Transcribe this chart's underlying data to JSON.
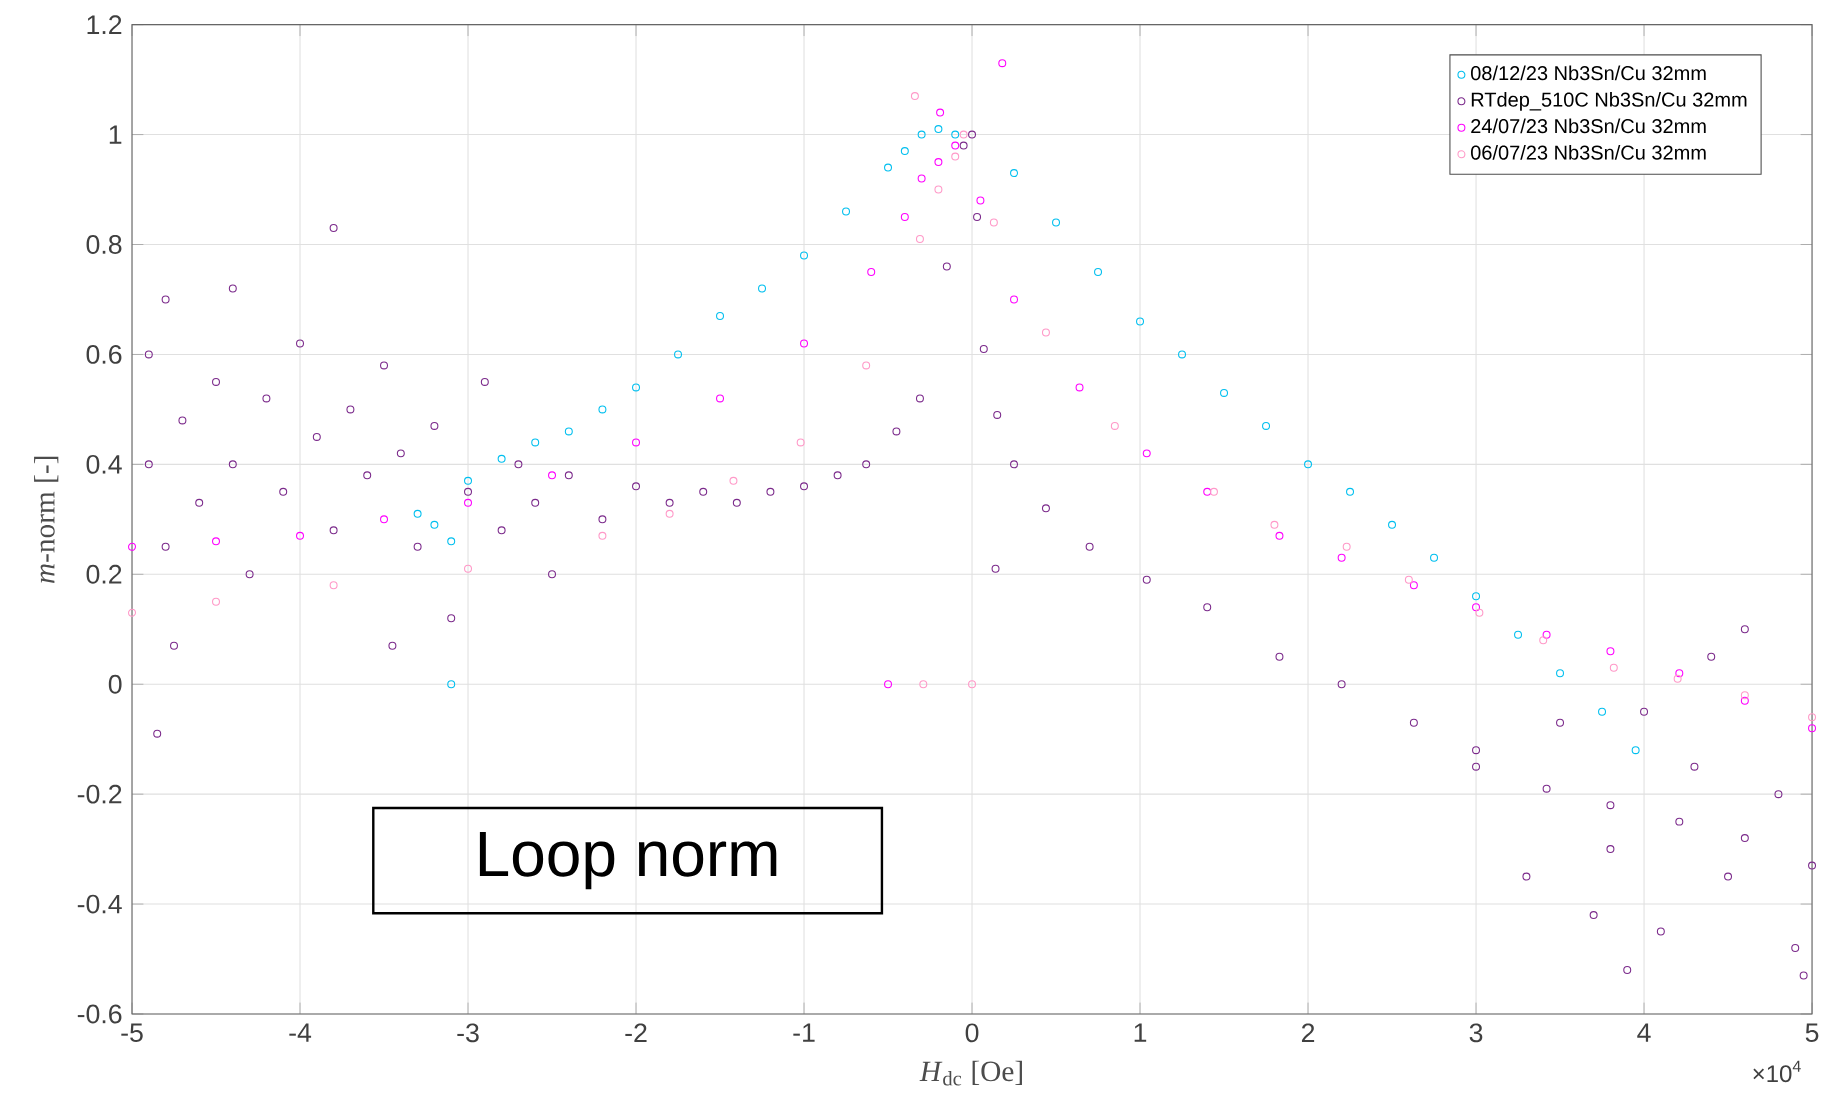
{
  "chart_data": {
    "type": "scatter",
    "xlabel": "*H*$_{dc}$ [Oe]",
    "ylabel": "*m*-norm [-]",
    "xlim": [
      -5,
      5
    ],
    "xticks": [
      -5,
      -4,
      -3,
      -2,
      -1,
      0,
      1,
      2,
      3,
      4,
      5
    ],
    "ylim": [
      -0.6,
      1.2
    ],
    "yticks": [
      -0.6,
      -0.4,
      -0.2,
      0,
      0.2,
      0.4,
      0.6,
      0.8,
      1,
      1.2
    ],
    "grid": true,
    "legend": "top right",
    "marker": "circle",
    "annotations": [
      "Loop norm",
      "×10$^{4}$"
    ],
    "series": [
      {
        "name": "08/12/23 Nb3Sn/Cu 32mm",
        "color": "#00bfef",
        "x": [
          -3.3,
          -3.2,
          -3.1,
          -3.0,
          -2.8,
          -2.6,
          -2.4,
          -2.2,
          -2.0,
          -1.75,
          -1.5,
          -1.25,
          -1.0,
          -0.75,
          -0.5,
          -0.4,
          -0.3,
          -0.2,
          -0.1,
          0,
          0.25,
          0.5,
          0.75,
          1.0,
          1.25,
          1.5,
          1.75,
          2.0,
          2.25,
          2.5,
          2.75,
          3.0,
          3.25,
          3.5,
          3.75,
          3.95,
          -3.1
        ],
        "values": [
          0.31,
          0.29,
          0.26,
          0.37,
          0.41,
          0.44,
          0.46,
          0.5,
          0.54,
          0.6,
          0.67,
          0.72,
          0.78,
          0.86,
          0.94,
          0.97,
          1.0,
          1.01,
          1.0,
          null,
          0.93,
          0.84,
          0.75,
          0.66,
          0.6,
          0.53,
          0.47,
          0.4,
          0.35,
          0.29,
          0.23,
          0.16,
          0.09,
          0.02,
          -0.05,
          -0.12,
          0
        ]
      },
      {
        "name": "RTdep_510C Nb3Sn/Cu 32mm",
        "color": "#7b2a8b",
        "x": [
          -4.9,
          -4.9,
          -4.8,
          -4.8,
          -4.7,
          -4.6,
          -4.5,
          -4.4,
          -4.4,
          -4.3,
          -4.2,
          -4.1,
          -4.0,
          -3.9,
          -3.8,
          -3.8,
          -3.7,
          -3.6,
          -3.5,
          -3.4,
          -3.3,
          -3.2,
          -3.1,
          -3.0,
          -2.9,
          -2.8,
          -2.7,
          -2.6,
          -2.5,
          -2.4,
          -2.2,
          -2.0,
          -1.8,
          -1.6,
          -1.4,
          -1.2,
          -1.0,
          -0.8,
          -0.63,
          -0.45,
          -0.31,
          -0.15,
          -0.05,
          0,
          0.03,
          0.07,
          -4.85,
          -4.75,
          -3.45,
          0.15,
          0.25,
          0.44,
          0.7,
          1.04,
          1.4,
          1.83,
          2.2,
          2.63,
          3.0,
          3.42,
          3.8,
          4.21,
          4.6,
          5.0,
          3.0,
          3.3,
          3.5,
          3.7,
          3.8,
          3.9,
          4.0,
          4.1,
          4.3,
          4.4,
          4.5,
          4.6,
          4.8,
          4.9,
          4.95,
          0.14
        ],
        "values": [
          0.6,
          0.4,
          0.25,
          0.7,
          0.48,
          0.33,
          0.55,
          0.72,
          0.4,
          0.2,
          0.52,
          0.35,
          0.62,
          0.45,
          0.28,
          0.83,
          0.5,
          0.38,
          0.58,
          0.42,
          0.25,
          0.47,
          0.12,
          0.35,
          0.55,
          0.28,
          0.4,
          0.33,
          0.2,
          0.38,
          0.3,
          0.36,
          0.33,
          0.35,
          0.33,
          0.35,
          0.36,
          0.38,
          0.4,
          0.46,
          0.52,
          0.76,
          0.98,
          1.0,
          0.85,
          0.61,
          -0.09,
          0.07,
          0.07,
          0.49,
          0.4,
          0.32,
          0.25,
          0.19,
          0.14,
          0.05,
          0.0,
          -0.07,
          -0.12,
          -0.19,
          -0.22,
          -0.25,
          -0.28,
          -0.33,
          -0.15,
          -0.35,
          -0.07,
          -0.42,
          -0.3,
          -0.52,
          -0.05,
          -0.45,
          -0.15,
          0.05,
          -0.35,
          0.1,
          -0.2,
          -0.48,
          -0.53,
          0.21
        ]
      },
      {
        "name": "24/07/23 Nb3Sn/Cu 32mm",
        "color": "#ff00ff",
        "x": [
          -5.0,
          -4.5,
          -4.0,
          -3.5,
          -3.0,
          -2.5,
          -2.0,
          -1.5,
          -1.0,
          -0.6,
          -0.4,
          -0.3,
          -0.2,
          -0.1,
          -0.05,
          0.05,
          0.25,
          0.64,
          1.04,
          1.4,
          1.83,
          2.2,
          2.63,
          3.0,
          3.42,
          3.8,
          4.21,
          4.6,
          5.0,
          -0.5,
          0.18,
          -0.19
        ],
        "values": [
          0.25,
          0.26,
          0.27,
          0.3,
          0.33,
          0.38,
          0.44,
          0.52,
          0.62,
          0.75,
          0.85,
          0.92,
          0.95,
          0.98,
          null,
          0.88,
          0.7,
          0.54,
          0.42,
          0.35,
          0.27,
          0.23,
          0.18,
          0.14,
          0.09,
          0.06,
          0.02,
          -0.03,
          -0.08,
          0,
          1.13,
          1.04
        ]
      },
      {
        "name": "06/07/23 Nb3Sn/Cu 32mm",
        "color": "#ff99c8",
        "x": [
          -5.0,
          -4.5,
          -3.8,
          -3.0,
          -2.2,
          -1.8,
          -1.42,
          -1.02,
          -0.63,
          -0.31,
          -0.2,
          -0.1,
          -0.05,
          0.13,
          0.44,
          0.85,
          1.44,
          1.8,
          2.23,
          2.6,
          3.02,
          3.4,
          3.82,
          4.2,
          4.6,
          5.0,
          -0.29,
          0,
          -0.34
        ],
        "values": [
          0.13,
          0.15,
          0.18,
          0.21,
          0.27,
          0.31,
          0.37,
          0.44,
          0.58,
          0.81,
          0.9,
          0.96,
          1.0,
          0.84,
          0.64,
          0.47,
          0.35,
          0.29,
          0.25,
          0.19,
          0.13,
          0.08,
          0.03,
          0.01,
          -0.02,
          -0.06,
          0,
          0,
          1.07
        ]
      }
    ]
  }
}
